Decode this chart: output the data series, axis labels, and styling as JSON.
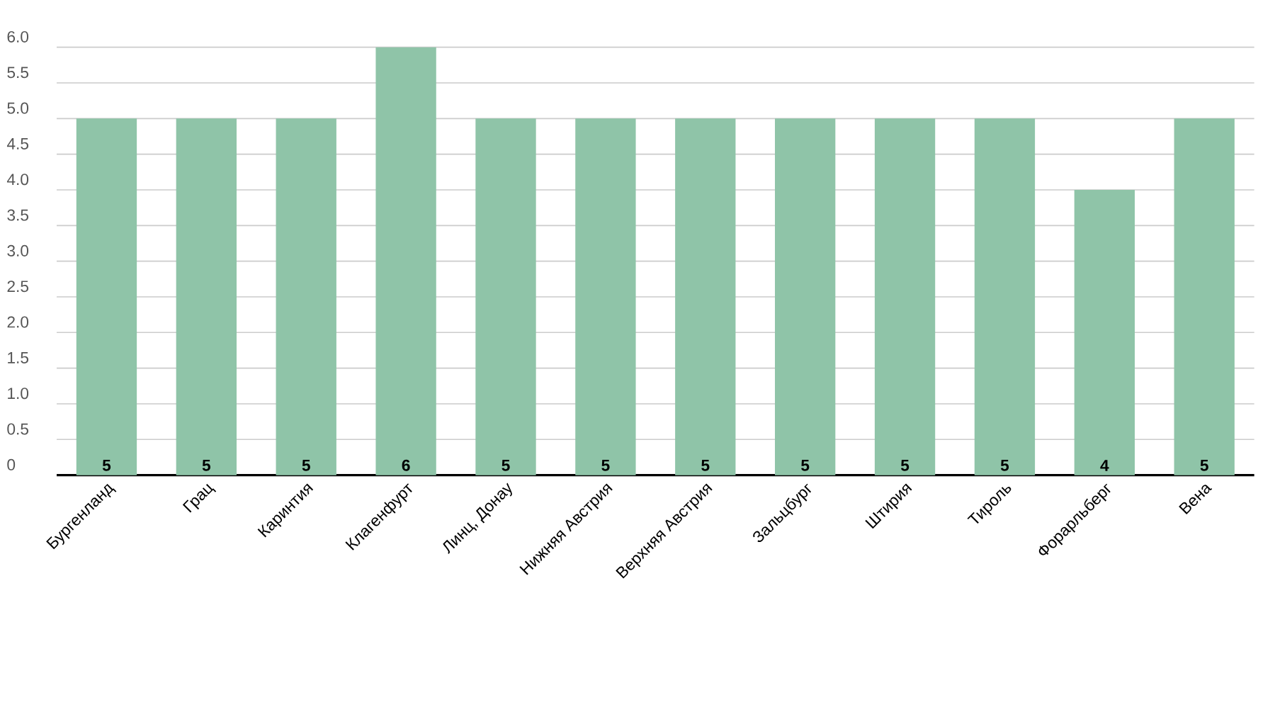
{
  "chart_data": {
    "type": "bar",
    "categories": [
      "Бургенланд",
      "Грац",
      "Каринтия",
      "Клагенфурт",
      "Линц, Донау",
      "Нижняя Австрия",
      "Верхняя Австрия",
      "Зальцбург",
      "Штирия",
      "Тироль",
      "Форарльберг",
      "Вена"
    ],
    "values": [
      5,
      5,
      5,
      6,
      5,
      5,
      5,
      5,
      5,
      5,
      4,
      5
    ],
    "color": "#8fc4a8",
    "ylim": [
      0,
      6
    ],
    "yticks": [
      0,
      0.5,
      {
        "value": 1,
        "label": "1.0"
      },
      1.5,
      {
        "value": 2,
        "label": "2.0"
      },
      2.5,
      {
        "value": 3,
        "label": "3.0"
      },
      3.5,
      {
        "value": 4,
        "label": "4.0"
      },
      4.5,
      {
        "value": 5,
        "label": "5.0"
      },
      5.5,
      {
        "value": 6,
        "label": "6.0"
      }
    ],
    "grid": "y",
    "data_labels": true
  }
}
